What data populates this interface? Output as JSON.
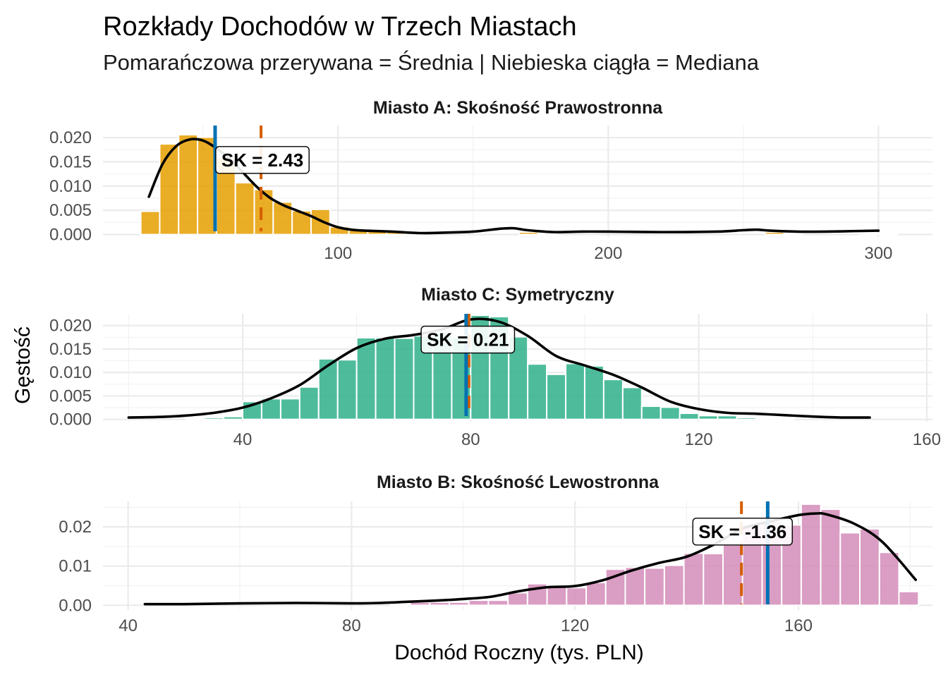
{
  "title": "Rozkłady Dochodów w Trzech Miastach",
  "subtitle": "Pomarańczowa przerywana = Średnia  |  Niebieska ciągła = Mediana",
  "ylabel": "Gęstość",
  "xlabel": "Dochód Roczny (tys. PLN)",
  "colors": {
    "mean": "#D55E00",
    "median": "#0072B2",
    "density": "#000000"
  },
  "chart_data": [
    {
      "type": "histogram+density",
      "panel": "A",
      "title": "Miasto A: Skośność Prawostronna",
      "fill": "#E69F00",
      "xlim": [
        13,
        320
      ],
      "ylim": [
        -0.0005,
        0.0225
      ],
      "xticks": [
        100,
        200,
        300
      ],
      "xtick_labels": [
        "100",
        "200",
        "300"
      ],
      "yticks": [
        0,
        0.005,
        0.01,
        0.015,
        0.02
      ],
      "ytick_labels": [
        "0.000",
        "0.005",
        "0.010",
        "0.015",
        "0.020"
      ],
      "bar_edges": [
        27,
        34,
        41,
        48,
        55,
        62,
        69,
        76,
        83,
        90,
        97,
        104,
        111,
        118,
        125,
        132,
        139,
        146,
        153,
        160,
        167,
        174,
        181,
        188,
        195,
        202,
        209,
        216,
        223,
        230,
        237,
        244,
        251,
        258,
        265,
        272,
        279,
        286,
        293,
        300,
        307
      ],
      "values": [
        0.0048,
        0.0187,
        0.0206,
        0.0201,
        0.0158,
        0.0107,
        0.0093,
        0.0067,
        0.0049,
        0.0052,
        0.0016,
        0.0009,
        0.0009,
        0.0005,
        0.0002,
        0,
        0,
        0,
        0,
        0,
        0.0005,
        0.0002,
        0,
        0,
        0,
        0,
        0,
        0,
        0,
        0,
        0,
        0,
        0,
        0.0005,
        0.0002,
        0,
        0,
        0,
        0.0002,
        0.0001
      ],
      "density_x": [
        30,
        35,
        40,
        45,
        50,
        55,
        60,
        65,
        70,
        75,
        80,
        85,
        90,
        95,
        100,
        105,
        110,
        120,
        130,
        140,
        150,
        160,
        165,
        170,
        180,
        190,
        200,
        220,
        240,
        250,
        255,
        260,
        270,
        280,
        290,
        300
      ],
      "density_y": [
        0.0078,
        0.0145,
        0.0182,
        0.0196,
        0.0194,
        0.0178,
        0.0155,
        0.0127,
        0.0098,
        0.0075,
        0.006,
        0.0049,
        0.0038,
        0.0025,
        0.0015,
        0.001,
        0.0008,
        0.0006,
        0.0003,
        0.0004,
        0.0006,
        0.0012,
        0.0013,
        0.0009,
        0.0005,
        0.0006,
        0.0006,
        0.0005,
        0.0006,
        0.0009,
        0.001,
        0.0008,
        0.0006,
        0.0006,
        0.0007,
        0.0008
      ],
      "mean": 71.5,
      "median": 54.5,
      "sk_label": "SK = 2.43",
      "sk_position": {
        "x": 72,
        "y": 0.0154
      }
    },
    {
      "type": "histogram+density",
      "panel": "C",
      "title": "Miasto C: Symetryczny",
      "fill": "#2FB08A",
      "xlim": [
        15.5,
        161
      ],
      "ylim": [
        -0.0005,
        0.0225
      ],
      "xticks": [
        40,
        80,
        120,
        160
      ],
      "xtick_labels": [
        "40",
        "80",
        "120",
        "160"
      ],
      "yticks": [
        0,
        0.005,
        0.01,
        0.015,
        0.02
      ],
      "ytick_labels": [
        "0.000",
        "0.005",
        "0.010",
        "0.015",
        "0.020"
      ],
      "bar_edges": [
        30,
        33.33,
        36.67,
        40,
        43.33,
        46.67,
        50,
        53.33,
        56.67,
        60,
        63.33,
        66.67,
        70,
        73.33,
        76.67,
        80,
        83.33,
        86.67,
        90,
        93.33,
        96.67,
        100,
        103.33,
        106.67,
        110,
        113.33,
        116.67,
        120,
        123.33,
        126.67,
        130,
        133.33,
        136.67
      ],
      "values": [
        0.0002,
        0.0004,
        0.0006,
        0.0038,
        0.0044,
        0.0044,
        0.0069,
        0.0129,
        0.0127,
        0.0174,
        0.0174,
        0.0173,
        0.0178,
        0.0186,
        0.0174,
        0.0222,
        0.0219,
        0.0176,
        0.0118,
        0.0096,
        0.0119,
        0.0114,
        0.0085,
        0.0068,
        0.0028,
        0.0026,
        0.0013,
        0.0008,
        0.0008,
        0.0004,
        0.0003,
        0.0002
      ],
      "density_x": [
        20,
        25,
        30,
        35,
        40,
        45,
        50,
        55,
        60,
        65,
        70,
        75,
        80,
        85,
        90,
        95,
        100,
        105,
        110,
        115,
        120,
        125,
        130,
        135,
        140,
        145,
        150
      ],
      "density_y": [
        0.0004,
        0.0005,
        0.0008,
        0.0014,
        0.0025,
        0.0045,
        0.0073,
        0.0115,
        0.0152,
        0.0172,
        0.018,
        0.0192,
        0.0213,
        0.0208,
        0.0178,
        0.0135,
        0.0115,
        0.0095,
        0.0068,
        0.0038,
        0.0022,
        0.0014,
        0.0012,
        0.0009,
        0.0006,
        0.0004,
        0.0004
      ],
      "mean": 79.7,
      "median": 79.2,
      "sk_label": "SK = 0.21",
      "sk_position": {
        "x": 79.5,
        "y": 0.017
      }
    },
    {
      "type": "histogram+density",
      "panel": "B",
      "title": "Miasto B: Skośność Lewostronna",
      "fill": "#D38CB8",
      "xlim": [
        35.5,
        184
      ],
      "ylim": [
        -0.0012,
        0.0265
      ],
      "xticks": [
        40,
        80,
        120,
        160
      ],
      "xtick_labels": [
        "40",
        "80",
        "120",
        "160"
      ],
      "yticks": [
        0,
        0.01,
        0.02
      ],
      "ytick_labels": [
        "0.00",
        "0.01",
        "0.02"
      ],
      "bar_edges": [
        87,
        90.5,
        94,
        97.5,
        101,
        104.5,
        108,
        111.5,
        115,
        118.5,
        122,
        125.5,
        129,
        132.5,
        136,
        139.5,
        143,
        146.5,
        150,
        153.5,
        157,
        160.5,
        164,
        167.5,
        171,
        174.5,
        178,
        181.5
      ],
      "values": [
        0.0003,
        0.0008,
        0.0008,
        0.0008,
        0.0013,
        0.0013,
        0.0032,
        0.0055,
        0.005,
        0.0045,
        0.0058,
        0.0092,
        0.0097,
        0.0095,
        0.0102,
        0.0133,
        0.0132,
        0.0154,
        0.0205,
        0.0215,
        0.0205,
        0.0258,
        0.0245,
        0.0185,
        0.0195,
        0.0135,
        0.0035
      ],
      "density_x": [
        43,
        50,
        60,
        70,
        80,
        85,
        90,
        95,
        100,
        105,
        110,
        115,
        120,
        125,
        130,
        135,
        140,
        145,
        150,
        155,
        160,
        163,
        165,
        170,
        175,
        181
      ],
      "density_y": [
        0.0003,
        0.0003,
        0.0005,
        0.0006,
        0.0005,
        0.0006,
        0.0009,
        0.0012,
        0.0016,
        0.0022,
        0.0036,
        0.0046,
        0.0049,
        0.0064,
        0.0088,
        0.0108,
        0.0124,
        0.0156,
        0.0196,
        0.0214,
        0.023,
        0.0234,
        0.0232,
        0.0208,
        0.0162,
        0.0065
      ],
      "mean": 149.8,
      "median": 154.5,
      "sk_label": "SK = -1.36",
      "sk_position": {
        "x": 150,
        "y": 0.0188
      }
    }
  ]
}
